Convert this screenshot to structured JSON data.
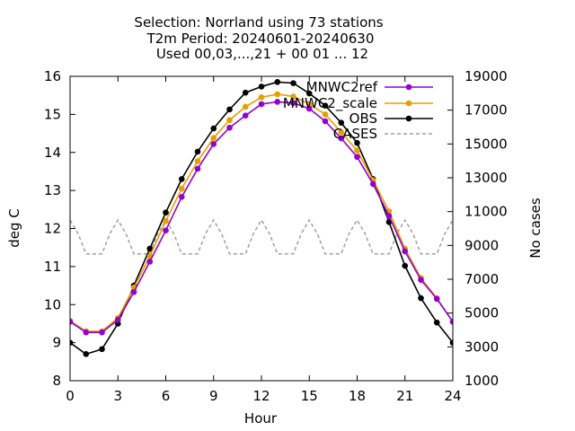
{
  "chart_data": {
    "type": "line",
    "title": [
      "Selection: Norrland using    73 stations",
      "T2m   Period: 20240601-20240630",
      "Used 00,03,...,21 + 00 01 ... 12"
    ],
    "xlabel": "Hour",
    "ylabel": "deg C",
    "y2label": "No cases",
    "xlim": [
      0,
      24
    ],
    "ylim": [
      8,
      16
    ],
    "y2lim": [
      1000,
      19000
    ],
    "xticks": [
      "0",
      "3",
      "6",
      "9",
      "12",
      "15",
      "18",
      "21",
      "24"
    ],
    "yticks": [
      "8",
      "9",
      "10",
      "11",
      "12",
      "13",
      "14",
      "15",
      "16"
    ],
    "y2ticks": [
      "1000",
      "3000",
      "5000",
      "7000",
      "9000",
      "11000",
      "13000",
      "15000",
      "17000",
      "19000"
    ],
    "grid": false,
    "legend_position": "top-right",
    "series": [
      {
        "name": "MNWC2ref",
        "color": "#9400d3",
        "axis": "y",
        "marker": "circle",
        "x": [
          0,
          1,
          2,
          3,
          4,
          5,
          6,
          7,
          8,
          9,
          10,
          11,
          12,
          13,
          14,
          15,
          16,
          17,
          18,
          19,
          20,
          21,
          22,
          23,
          24
        ],
        "values": [
          9.55,
          9.27,
          9.27,
          9.6,
          10.33,
          11.13,
          11.95,
          12.83,
          13.57,
          14.22,
          14.65,
          14.97,
          15.27,
          15.33,
          15.3,
          15.15,
          14.82,
          14.37,
          13.88,
          13.17,
          12.33,
          11.4,
          10.65,
          10.15,
          9.55
        ]
      },
      {
        "name": "MNWC2_scale",
        "color": "#e69f00",
        "axis": "y",
        "marker": "circle",
        "x": [
          0,
          1,
          2,
          3,
          4,
          5,
          6,
          7,
          8,
          9,
          10,
          11,
          12,
          13,
          14,
          15,
          16,
          17,
          18,
          19,
          20,
          21,
          22,
          23,
          24
        ],
        "values": [
          9.57,
          9.3,
          9.3,
          9.65,
          10.45,
          11.27,
          12.2,
          13.05,
          13.77,
          14.38,
          14.85,
          15.2,
          15.45,
          15.53,
          15.47,
          15.27,
          15.0,
          14.53,
          14.05,
          13.27,
          12.45,
          11.47,
          10.7,
          10.17,
          9.55
        ]
      },
      {
        "name": "OBS",
        "color": "#000000",
        "axis": "y",
        "marker": "circle",
        "x": [
          0,
          1,
          2,
          3,
          4,
          5,
          6,
          7,
          8,
          9,
          10,
          11,
          12,
          13,
          14,
          15,
          16,
          17,
          18,
          19,
          20,
          21,
          22,
          23,
          24
        ],
        "values": [
          9.0,
          8.7,
          8.83,
          9.5,
          10.5,
          11.47,
          12.42,
          13.3,
          14.02,
          14.63,
          15.13,
          15.57,
          15.73,
          15.85,
          15.82,
          15.55,
          15.23,
          14.78,
          14.25,
          13.3,
          12.17,
          11.02,
          10.17,
          9.53,
          9.0
        ]
      },
      {
        "name": "CASES",
        "color": "#a0a0a0",
        "axis": "y2",
        "marker": "none",
        "dash": true,
        "x": [
          0,
          0.5,
          1,
          1.5,
          2,
          2.5,
          3,
          3.5,
          4,
          4.5,
          5,
          5.5,
          6,
          6.5,
          7,
          7.5,
          8,
          8.5,
          9,
          9.5,
          10,
          10.5,
          11,
          11.5,
          12,
          12.5,
          13,
          13.5,
          14,
          14.5,
          15,
          15.5,
          16,
          16.5,
          17,
          17.5,
          18,
          18.5,
          19,
          19.5,
          20,
          20.5,
          21,
          21.5,
          22,
          22.5,
          23,
          23.5,
          24
        ],
        "values": [
          10500,
          9700,
          8500,
          8500,
          8500,
          9700,
          10500,
          9700,
          8500,
          8500,
          8500,
          9700,
          10500,
          9700,
          8500,
          8500,
          8500,
          9700,
          10500,
          9700,
          8500,
          8500,
          8500,
          9700,
          10500,
          9700,
          8500,
          8500,
          8500,
          9700,
          10500,
          9700,
          8500,
          8500,
          8500,
          9700,
          10500,
          9700,
          8500,
          8500,
          8500,
          9700,
          10500,
          9700,
          8500,
          8500,
          8500,
          9700,
          10500
        ]
      }
    ]
  }
}
